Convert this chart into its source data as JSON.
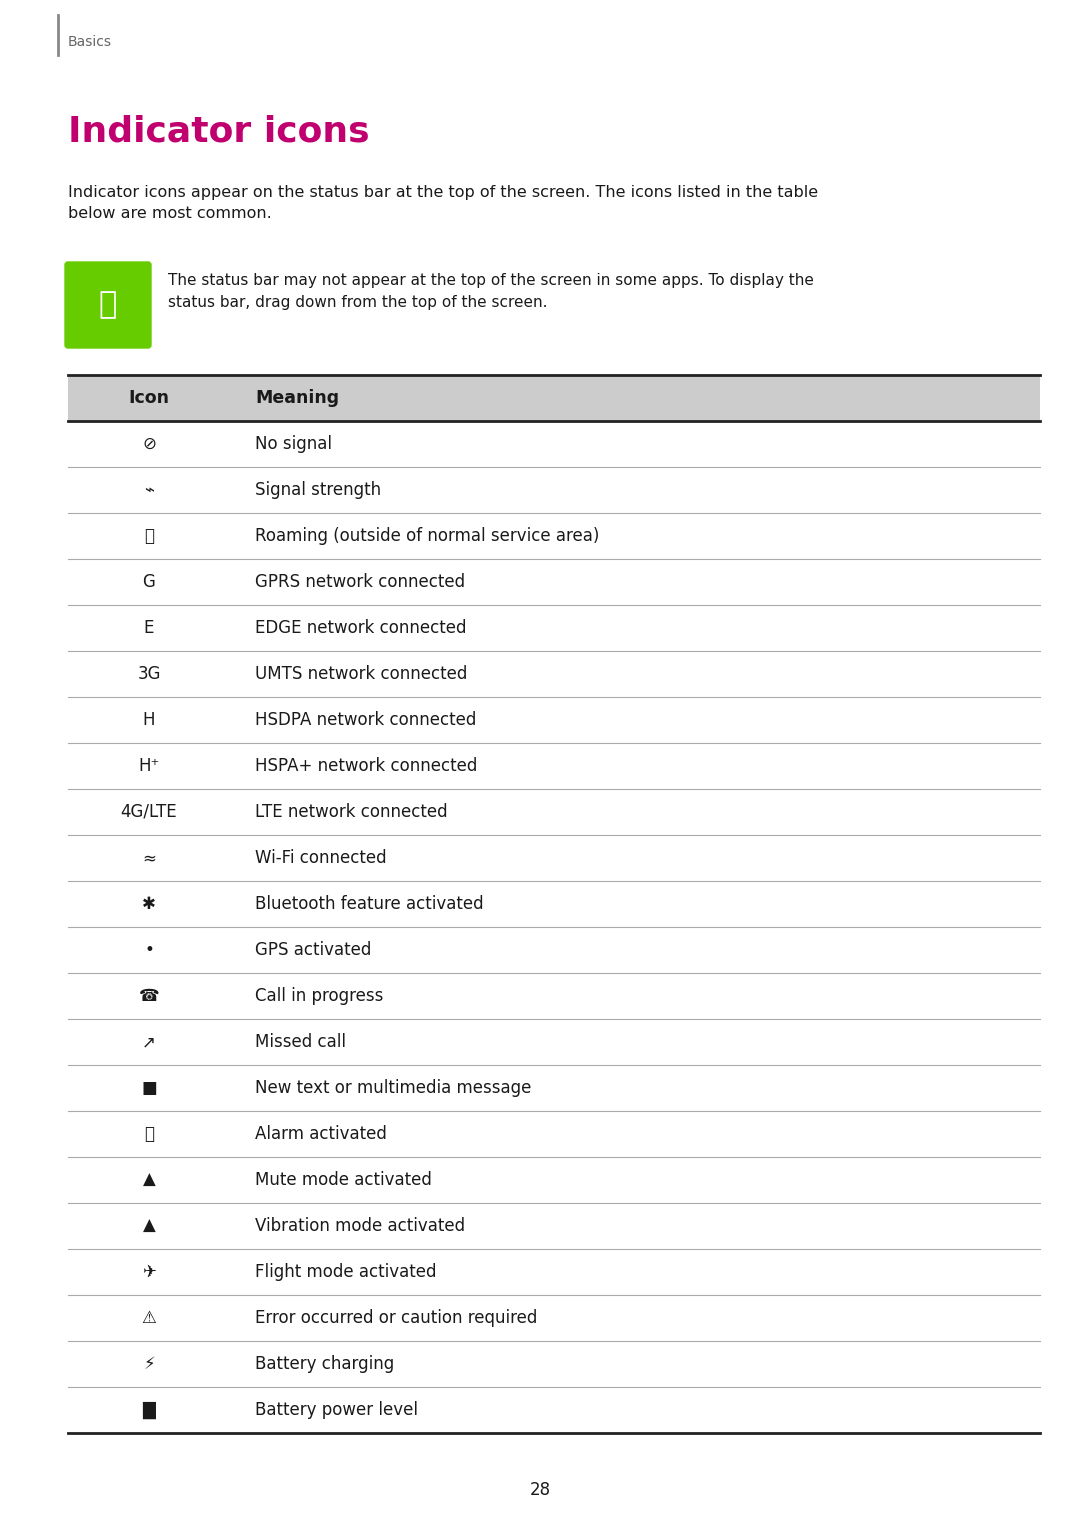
{
  "page_bg": "#ffffff",
  "page_number": "28",
  "section_label": "Basics",
  "title": "Indicator icons",
  "title_color": "#c0006e",
  "body_text": "Indicator icons appear on the status bar at the top of the screen. The icons listed in the table\nbelow are most common.",
  "note_text": "The status bar may not appear at the top of the screen in some apps. To display the\nstatus bar, drag down from the top of the screen.",
  "note_icon_color": "#66cc00",
  "header_bg": "#cccccc",
  "meanings": [
    "No signal",
    "Signal strength",
    "Roaming (outside of normal service area)",
    "GPRS network connected",
    "EDGE network connected",
    "UMTS network connected",
    "HSDPA network connected",
    "HSPA+ network connected",
    "LTE network connected",
    "Wi-Fi connected",
    "Bluetooth feature activated",
    "GPS activated",
    "Call in progress",
    "Missed call",
    "New text or multimedia message",
    "Alarm activated",
    "Mute mode activated",
    "Vibration mode activated",
    "Flight mode activated",
    "Error occurred or caution required",
    "Battery charging",
    "Battery power level"
  ],
  "text_color": "#1a1a1a",
  "divider_color": "#aaaaaa",
  "heavy_line_color": "#222222",
  "section_line_color": "#888888"
}
